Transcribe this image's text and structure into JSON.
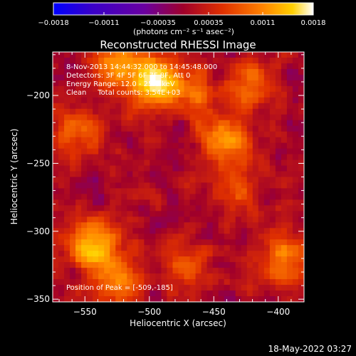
{
  "chart_data": {
    "type": "heatmap",
    "title": "Reconstructed RHESSI Image",
    "xlabel": "Heliocentric X (arcsec)",
    "ylabel": "Heliocentric Y (arcsec)",
    "xlim": [
      -575,
      -380
    ],
    "ylim": [
      -352,
      -168
    ],
    "x_ticks": [
      -550,
      -500,
      -450,
      -400
    ],
    "y_ticks": [
      -200,
      -250,
      -300,
      -350
    ],
    "x_tick_labels": [
      "−550",
      "−500",
      "−450",
      "−400"
    ],
    "y_tick_labels": [
      "−200",
      "−250",
      "−300",
      "−350"
    ],
    "colorbar": {
      "range": [
        -0.0018,
        0.0018
      ],
      "tick_values": [
        -0.0018,
        -0.0011,
        -0.00035,
        0.00035,
        0.0011,
        0.0018
      ],
      "tick_labels": [
        "−0.0018",
        "−0.0011",
        "−0.00035",
        "0.00035",
        "0.0011",
        "0.0018"
      ],
      "unit_label": "(photons cm⁻² s⁻¹ asec⁻²)",
      "colormap": [
        "#0000ff",
        "#3a00c8",
        "#6a00a0",
        "#a0002a",
        "#e03000",
        "#ff8000",
        "#ffd000",
        "#ffffff"
      ]
    },
    "annotations": [
      "8-Nov-2013 14:44:32.000 to 14:45:48.000",
      "Detectors: 3F 4F 5F 6F 7F 8F, Att 0",
      "Energy Range: 12.0 - 25.0 keV",
      "Clean     Total counts: 3.54E+03"
    ],
    "peak": {
      "x": -509,
      "y": -185,
      "label": "Position of Peak = [-509,-185]"
    },
    "bright_sources": [
      {
        "x": -495,
        "y": -190,
        "intensity": 0.0018
      },
      {
        "x": -525,
        "y": -180,
        "intensity": 0.0011
      },
      {
        "x": -440,
        "y": -232,
        "intensity": 0.0011
      },
      {
        "x": -545,
        "y": -310,
        "intensity": 0.0014
      },
      {
        "x": -555,
        "y": -225,
        "intensity": 0.0008
      },
      {
        "x": -465,
        "y": -200,
        "intensity": 0.0006
      },
      {
        "x": -420,
        "y": -190,
        "intensity": 0.0009
      },
      {
        "x": -395,
        "y": -320,
        "intensity": 0.001
      },
      {
        "x": -430,
        "y": -270,
        "intensity": 0.0006
      },
      {
        "x": -470,
        "y": -325,
        "intensity": 0.0007
      },
      {
        "x": -525,
        "y": -335,
        "intensity": 0.0009
      }
    ]
  },
  "footer_timestamp": "18-May-2022 03:27"
}
